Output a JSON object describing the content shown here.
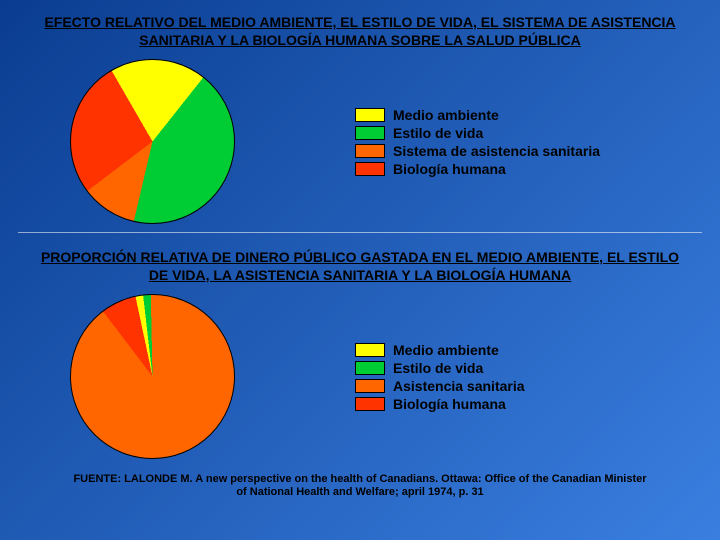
{
  "background": {
    "gradient_from": "#0a3d91",
    "gradient_to": "#3a7fe0"
  },
  "chart1": {
    "title": "EFECTO RELATIVO DEL MEDIO AMBIENTE, EL ESTILO DE VIDA, EL SISTEMA DE ASISTENCIA SANITARIA Y LA BIOLOGÍA HUMANA SOBRE LA SALUD PÚBLICA",
    "title_fontsize": 14,
    "type": "pie",
    "slices": [
      {
        "label": "Medio ambiente",
        "value": 19,
        "color": "#ffff00"
      },
      {
        "label": "Estilo de vida",
        "value": 43,
        "color": "#00cc33"
      },
      {
        "label": "Sistema de asistencia sanitaria",
        "value": 11,
        "color": "#ff6600"
      },
      {
        "label": "Biología humana",
        "value": 27,
        "color": "#ff3300"
      }
    ],
    "legend": [
      {
        "label": "Medio ambiente",
        "swatch": "#ffff00"
      },
      {
        "label": "Estilo de vida",
        "swatch": "#00cc33"
      },
      {
        "label": "Sistema de asistencia sanitaria",
        "swatch": "#ff6600"
      },
      {
        "label": "Biología humana",
        "swatch": "#ff3300"
      }
    ],
    "legend_fontsize": 14,
    "start_angle_deg": -30
  },
  "chart2": {
    "title": "PROPORCIÓN RELATIVA DE DINERO PÚBLICO GASTADA EN EL MEDIO AMBIENTE, EL ESTILO DE VIDA, LA ASISTENCIA SANITARIA Y LA BIOLOGÍA HUMANA",
    "title_fontsize": 14,
    "type": "pie",
    "slices": [
      {
        "label": "Medio ambiente",
        "value": 1.5,
        "color": "#ffff00"
      },
      {
        "label": "Estilo de vida",
        "value": 1.5,
        "color": "#00cc33"
      },
      {
        "label": "Asistencia sanitaria",
        "value": 90,
        "color": "#ff6600"
      },
      {
        "label": "Biología humana",
        "value": 7,
        "color": "#ff3300"
      }
    ],
    "legend": [
      {
        "label": "Medio ambiente",
        "swatch": "#ffff00"
      },
      {
        "label": "Estilo de vida",
        "swatch": "#00cc33"
      },
      {
        "label": "Asistencia sanitaria",
        "swatch": "#ff6600"
      },
      {
        "label": "Biología humana",
        "swatch": "#ff3300"
      }
    ],
    "legend_fontsize": 14,
    "start_angle_deg": -12
  },
  "source": {
    "text": "FUENTE: LALONDE M. A new perspective on the health of Canadians. Ottawa: Office of the Canadian Minister of National Health and Welfare; april 1974, p. 31",
    "fontsize": 11
  }
}
